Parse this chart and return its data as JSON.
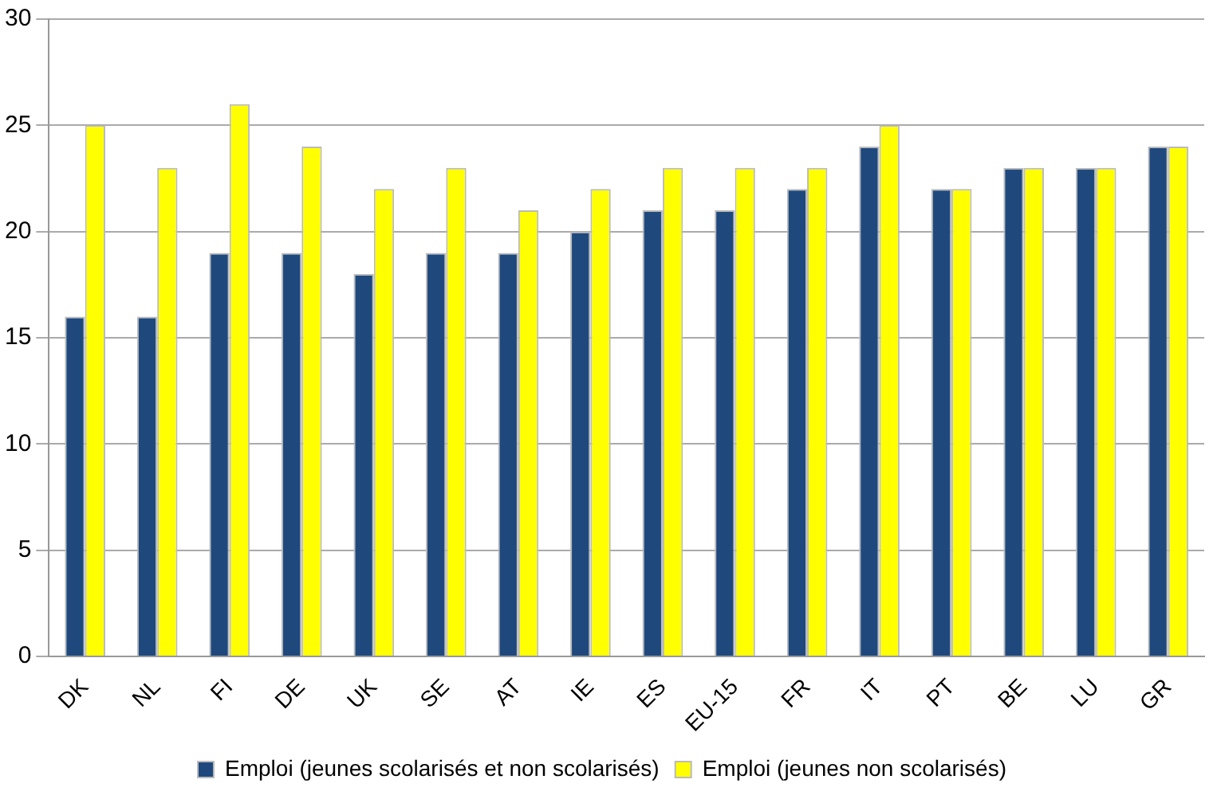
{
  "chart_data": {
    "type": "bar",
    "categories": [
      "DK",
      "NL",
      "FI",
      "DE",
      "UK",
      "SE",
      "AT",
      "IE",
      "ES",
      "EU-15",
      "FR",
      "IT",
      "PT",
      "BE",
      "LU",
      "GR"
    ],
    "series": [
      {
        "name": "Emploi (jeunes scolarisés et non scolarisés)",
        "color": "#1f497d",
        "values": [
          16,
          16,
          19,
          19,
          18,
          19,
          19,
          20,
          21,
          21,
          22,
          24,
          22,
          23,
          23,
          24
        ]
      },
      {
        "name": "Emploi (jeunes non scolarisés)",
        "color": "#ffff00",
        "values": [
          25,
          23,
          26,
          24,
          22,
          23,
          21,
          22,
          23,
          23,
          23,
          25,
          22,
          23,
          23,
          24
        ]
      }
    ],
    "ylim": [
      0,
      30
    ],
    "yticks": [
      0,
      5,
      10,
      15,
      20,
      25,
      30
    ],
    "grid": "y",
    "legend": "bottom"
  }
}
